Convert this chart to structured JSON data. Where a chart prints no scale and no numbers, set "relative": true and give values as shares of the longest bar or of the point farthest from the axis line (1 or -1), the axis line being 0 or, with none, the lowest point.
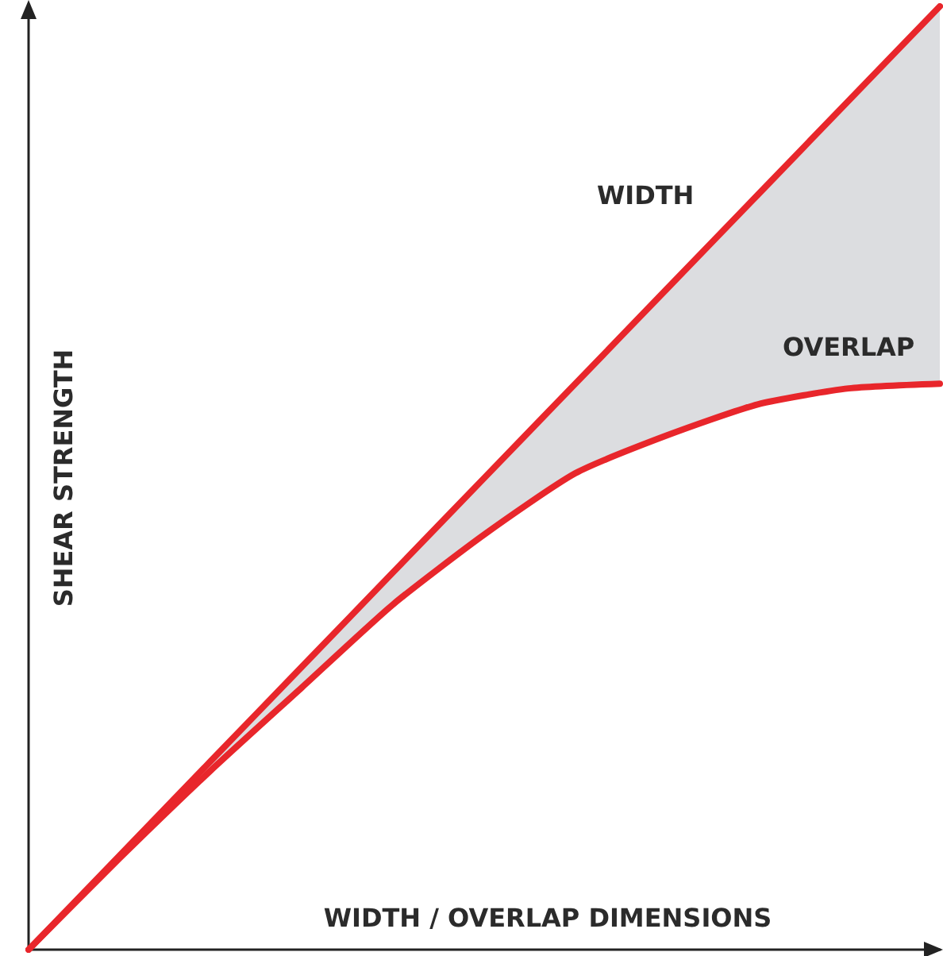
{
  "chart_data": {
    "type": "line",
    "relative": true,
    "xlabel": "WIDTH / OVERLAP DIMENSIONS",
    "ylabel": "SHEAR STRENGTH",
    "categories": [
      null,
      null,
      null,
      null,
      null,
      null,
      null,
      null,
      null,
      null,
      null
    ],
    "series": [
      {
        "name": "WIDTH",
        "color": "#e8262b",
        "values": [
          0,
          0.1,
          0.2,
          0.3,
          0.4,
          0.5,
          0.6,
          0.7,
          0.8,
          0.9,
          1
        ]
      },
      {
        "name": "OVERLAP",
        "color": "#e8262b",
        "values": [
          0,
          0.097,
          0.19,
          0.278,
          0.366,
          0.44,
          0.505,
          0.545,
          0.578,
          0.595,
          0.6
        ],
        "lower": [
          0,
          0.097,
          0.19,
          0.278,
          0.366,
          0.44,
          0.505,
          0.545,
          0.578,
          0.595,
          0.6
        ],
        "upper": [
          0,
          0.1,
          0.2,
          0.3,
          0.4,
          0.5,
          0.6,
          0.7,
          0.8,
          0.9,
          1
        ]
      }
    ],
    "tick_labels": false,
    "grid": false,
    "legend": false,
    "marker": "none",
    "line_style": "solid"
  }
}
